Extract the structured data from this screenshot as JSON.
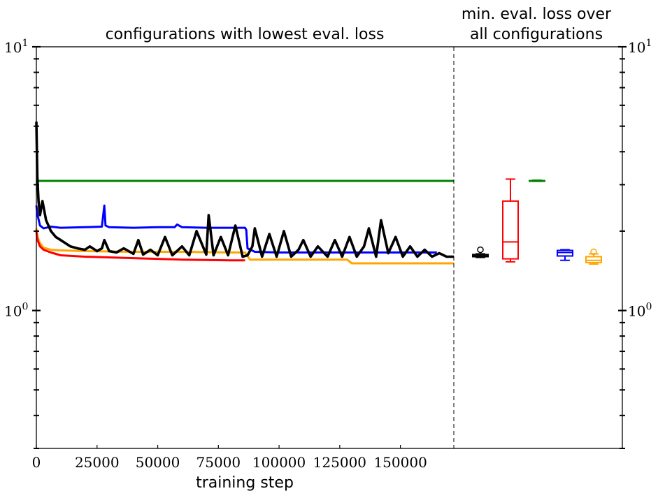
{
  "chart_data": {
    "type": "line",
    "left_panel": {
      "title": "configurations with lowest eval. loss",
      "xlabel": "training step",
      "x_ticks": [
        0,
        25000,
        50000,
        75000,
        100000,
        125000,
        150000
      ],
      "x_tick_labels": [
        "0",
        "25000",
        "50000",
        "75000",
        "100000",
        "125000",
        "150000"
      ],
      "xlim": [
        0,
        172000
      ],
      "y_scale": "log",
      "ylim": [
        0.3,
        10
      ],
      "y_major_ticks": [
        {
          "value": 1,
          "base": "10",
          "exp": "0"
        },
        {
          "value": 10,
          "base": "10",
          "exp": "1"
        }
      ],
      "series": [
        {
          "color": "#008000",
          "x": [
            0,
            172000
          ],
          "y": [
            3.1,
            3.1
          ]
        },
        {
          "color": "#0000ff",
          "x": [
            0,
            500,
            1500,
            3000,
            6000,
            10000,
            20000,
            27000,
            28000,
            28500,
            30000,
            40000,
            50000,
            57000,
            58000,
            60000,
            70000,
            80000,
            86000,
            86500,
            87000,
            90000,
            100000,
            120000,
            130000,
            150000,
            165000
          ],
          "y": [
            2.5,
            2.3,
            2.1,
            2.05,
            2.08,
            2.06,
            2.07,
            2.08,
            2.5,
            2.1,
            2.07,
            2.06,
            2.07,
            2.07,
            2.12,
            2.07,
            2.06,
            2.06,
            2.06,
            2.02,
            1.72,
            1.67,
            1.66,
            1.66,
            1.66,
            1.66,
            1.66
          ]
        },
        {
          "color": "#ffa500",
          "x": [
            0,
            500,
            1500,
            3000,
            6000,
            10000,
            20000,
            40000,
            60000,
            80000,
            86000,
            88000,
            100000,
            128000,
            130000,
            150000,
            172000
          ],
          "y": [
            2.05,
            1.9,
            1.8,
            1.73,
            1.7,
            1.69,
            1.68,
            1.67,
            1.67,
            1.66,
            1.66,
            1.56,
            1.56,
            1.56,
            1.51,
            1.51,
            1.51
          ]
        },
        {
          "color": "#ff0000",
          "x": [
            0,
            500,
            1500,
            3000,
            6000,
            10000,
            20000,
            40000,
            60000,
            80000,
            86000
          ],
          "y": [
            2.0,
            1.85,
            1.75,
            1.7,
            1.66,
            1.62,
            1.6,
            1.58,
            1.56,
            1.55,
            1.55
          ]
        },
        {
          "color": "#000000",
          "x": [
            0,
            400,
            900,
            1500,
            2500,
            4000,
            6000,
            8000,
            10000,
            14000,
            17000,
            20000,
            22000,
            25000,
            27000,
            28000,
            30000,
            33000,
            36000,
            40000,
            42000,
            44000,
            47000,
            50000,
            53000,
            56000,
            60000,
            63000,
            66000,
            70000,
            71000,
            73000,
            76000,
            79000,
            82000,
            85000,
            87000,
            89000,
            90000,
            93000,
            96000,
            99000,
            102000,
            105000,
            108000,
            110000,
            113000,
            116000,
            120000,
            123000,
            126000,
            129000,
            132000,
            135000,
            137000,
            140000,
            142000,
            145000,
            148000,
            151000,
            154000,
            157000,
            160000,
            163000,
            166000,
            169000,
            172000
          ],
          "y": [
            5.2,
            3.2,
            2.6,
            2.3,
            2.6,
            2.2,
            2.0,
            1.9,
            1.85,
            1.75,
            1.72,
            1.7,
            1.75,
            1.68,
            1.72,
            1.85,
            1.68,
            1.66,
            1.72,
            1.64,
            1.85,
            1.63,
            1.7,
            1.62,
            1.9,
            1.62,
            1.75,
            1.62,
            2.0,
            1.63,
            2.3,
            1.62,
            1.9,
            1.62,
            2.1,
            1.6,
            1.62,
            1.75,
            2.05,
            1.6,
            1.95,
            1.6,
            2.0,
            1.6,
            1.7,
            1.85,
            1.6,
            1.75,
            1.6,
            1.85,
            1.6,
            1.9,
            1.6,
            1.75,
            2.05,
            1.6,
            2.2,
            1.65,
            1.9,
            1.6,
            1.75,
            1.6,
            1.7,
            1.6,
            1.65,
            1.6,
            1.6
          ]
        }
      ]
    },
    "right_panel": {
      "title_lines": [
        "min. eval. loss over",
        "all configurations"
      ],
      "y_scale": "log",
      "y_major_ticks": [
        {
          "value": 1,
          "base": "10",
          "exp": "0"
        },
        {
          "value": 10,
          "base": "10",
          "exp": "1"
        }
      ],
      "boxes": [
        {
          "color": "#000000",
          "min": 1.59,
          "q1": 1.6,
          "median": 1.61,
          "q3": 1.63,
          "max": 1.64,
          "outliers": [
            1.7
          ]
        },
        {
          "color": "#ff0000",
          "min": 1.53,
          "q1": 1.57,
          "median": 1.82,
          "q3": 2.6,
          "max": 3.15,
          "outliers": []
        },
        {
          "color": "#008000",
          "min": 3.09,
          "q1": 3.1,
          "median": 3.1,
          "q3": 3.11,
          "max": 3.12,
          "outliers": []
        },
        {
          "color": "#0000ff",
          "min": 1.55,
          "q1": 1.61,
          "median": 1.66,
          "q3": 1.69,
          "max": 1.7,
          "outliers": []
        },
        {
          "color": "#ffa500",
          "min": 1.5,
          "q1": 1.52,
          "median": 1.55,
          "q3": 1.6,
          "max": 1.64,
          "outliers": [
            1.67
          ]
        }
      ]
    }
  }
}
